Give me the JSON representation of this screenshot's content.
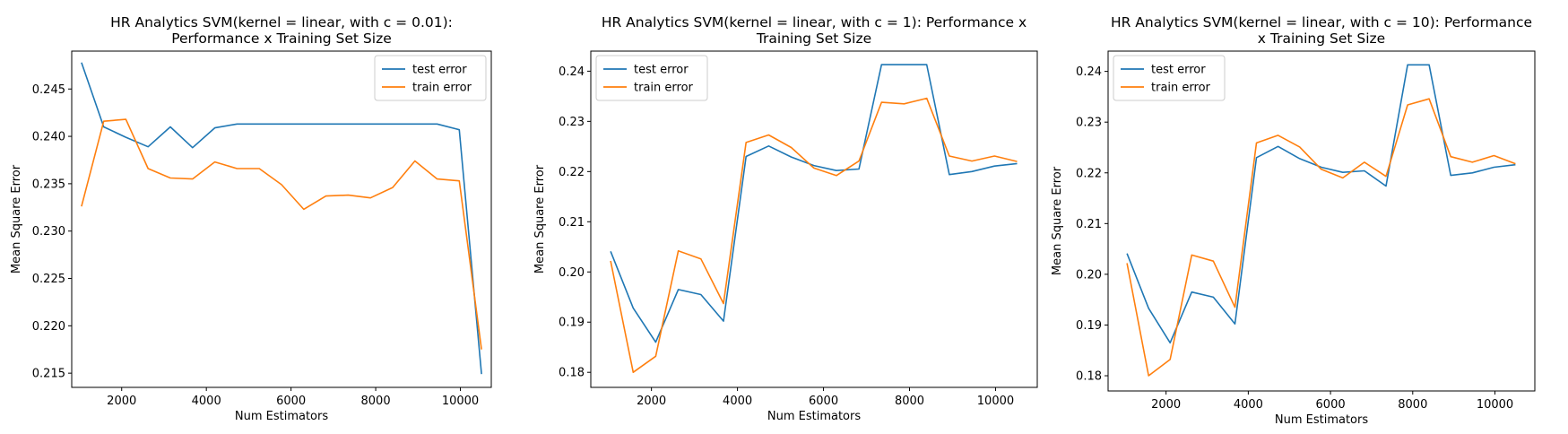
{
  "chart_data": [
    {
      "type": "line",
      "title": "HR Analytics SVM(kernel = linear, with c = 0.01):\nPerformance x Training Set Size",
      "xlabel": "Num Estimators",
      "ylabel": "Mean Square Error",
      "xlim": [
        820,
        10730
      ],
      "ylim": [
        0.2135,
        0.249
      ],
      "xticks": [
        2000,
        4000,
        6000,
        8000,
        10000
      ],
      "yticks": [
        0.215,
        0.22,
        0.225,
        0.23,
        0.235,
        0.24,
        0.245
      ],
      "ytick_decimals": 3,
      "legend_position": "upper right",
      "grid": false,
      "x": [
        1050,
        1575,
        2100,
        2625,
        3150,
        3675,
        4200,
        4725,
        5250,
        5775,
        6300,
        6825,
        7350,
        7875,
        8400,
        8925,
        9450,
        9975,
        10500
      ],
      "series": [
        {
          "name": "test error",
          "color": "#1f77b4",
          "values": [
            0.2478,
            0.241,
            0.2399,
            0.2389,
            0.241,
            0.2388,
            0.2409,
            0.2413,
            0.2413,
            0.2413,
            0.2413,
            0.2413,
            0.2413,
            0.2413,
            0.2413,
            0.2413,
            0.2413,
            0.2407,
            0.2149
          ]
        },
        {
          "name": "train error",
          "color": "#ff7f0e",
          "values": [
            0.2326,
            0.2416,
            0.2418,
            0.2366,
            0.2356,
            0.2355,
            0.2373,
            0.2366,
            0.2366,
            0.2349,
            0.2323,
            0.2337,
            0.2338,
            0.2335,
            0.2346,
            0.2374,
            0.2355,
            0.2353,
            0.2175
          ]
        }
      ]
    },
    {
      "type": "line",
      "title": "HR Analytics SVM(kernel = linear, with c = 1): Performance x\nTraining Set Size",
      "xlabel": "Num Estimators",
      "ylabel": "Mean Square Error",
      "xlim": [
        590,
        10970
      ],
      "ylim": [
        0.177,
        0.244
      ],
      "xticks": [
        2000,
        4000,
        6000,
        8000,
        10000
      ],
      "yticks": [
        0.18,
        0.19,
        0.2,
        0.21,
        0.22,
        0.23,
        0.24
      ],
      "ytick_decimals": 2,
      "legend_position": "upper left",
      "grid": false,
      "x": [
        1050,
        1575,
        2100,
        2625,
        3150,
        3675,
        4200,
        4725,
        5250,
        5775,
        6300,
        6825,
        7350,
        7875,
        8400,
        8925,
        9450,
        9975,
        10500
      ],
      "series": [
        {
          "name": "test error",
          "color": "#1f77b4",
          "values": [
            0.2041,
            0.1928,
            0.186,
            0.1965,
            0.1955,
            0.1902,
            0.223,
            0.2251,
            0.2229,
            0.2212,
            0.2202,
            0.2205,
            0.2413,
            0.2413,
            0.2413,
            0.2194,
            0.22,
            0.2211,
            0.2216
          ]
        },
        {
          "name": "train error",
          "color": "#ff7f0e",
          "values": [
            0.2022,
            0.18,
            0.1832,
            0.2042,
            0.2026,
            0.1937,
            0.2258,
            0.2273,
            0.2248,
            0.2207,
            0.2192,
            0.2221,
            0.2338,
            0.2335,
            0.2346,
            0.2231,
            0.2221,
            0.2231,
            0.222
          ]
        }
      ]
    },
    {
      "type": "line",
      "title": "HR Analytics SVM(kernel = linear, with c = 10): Performance\nx Training Set Size",
      "xlabel": "Num Estimators",
      "ylabel": "Mean Square Error",
      "xlim": [
        590,
        10970
      ],
      "ylim": [
        0.177,
        0.244
      ],
      "xticks": [
        2000,
        4000,
        6000,
        8000,
        10000
      ],
      "yticks": [
        0.18,
        0.19,
        0.2,
        0.21,
        0.22,
        0.23,
        0.24
      ],
      "ytick_decimals": 2,
      "legend_position": "upper left",
      "grid": false,
      "x": [
        1050,
        1575,
        2100,
        2625,
        3150,
        3675,
        4200,
        4725,
        5250,
        5775,
        6300,
        6825,
        7350,
        7875,
        8400,
        8925,
        9450,
        9975,
        10500
      ],
      "series": [
        {
          "name": "test error",
          "color": "#1f77b4",
          "values": [
            0.2041,
            0.1933,
            0.1865,
            0.1965,
            0.1955,
            0.1902,
            0.223,
            0.2252,
            0.2228,
            0.2211,
            0.2201,
            0.2204,
            0.2174,
            0.2413,
            0.2413,
            0.2195,
            0.22,
            0.2211,
            0.2216
          ]
        },
        {
          "name": "train error",
          "color": "#ff7f0e",
          "values": [
            0.2022,
            0.18,
            0.1832,
            0.2038,
            0.2026,
            0.1935,
            0.2259,
            0.2274,
            0.2251,
            0.2207,
            0.219,
            0.2221,
            0.2193,
            0.2334,
            0.2346,
            0.2232,
            0.2221,
            0.2234,
            0.2218
          ]
        }
      ]
    }
  ]
}
